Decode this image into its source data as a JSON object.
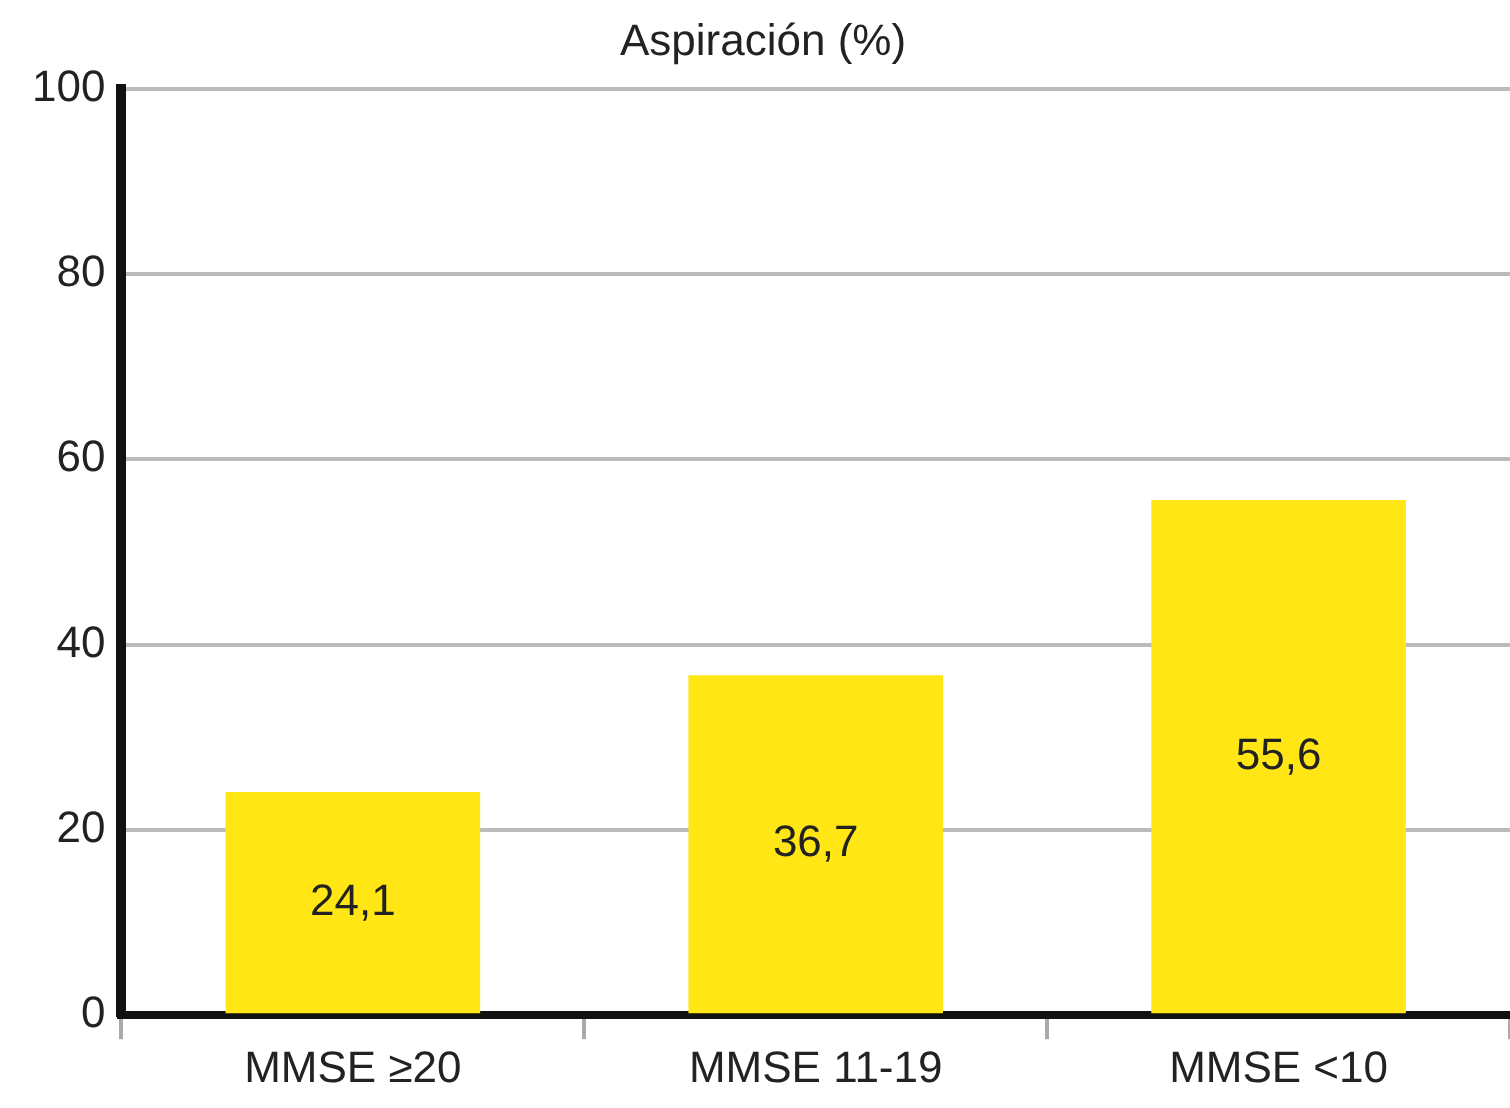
{
  "chart_data": {
    "type": "bar",
    "title": "Aspiración (%)",
    "categories": [
      "MMSE ≥20",
      "MMSE 11-19",
      "MMSE <10"
    ],
    "values": [
      24.1,
      36.7,
      55.6
    ],
    "value_labels": [
      "24,1",
      "36,7",
      "55,6"
    ],
    "color": "#ffe614",
    "ylim": [
      0,
      100
    ],
    "yticks": [
      0,
      20,
      40,
      60,
      80,
      100
    ],
    "grid": "y"
  }
}
